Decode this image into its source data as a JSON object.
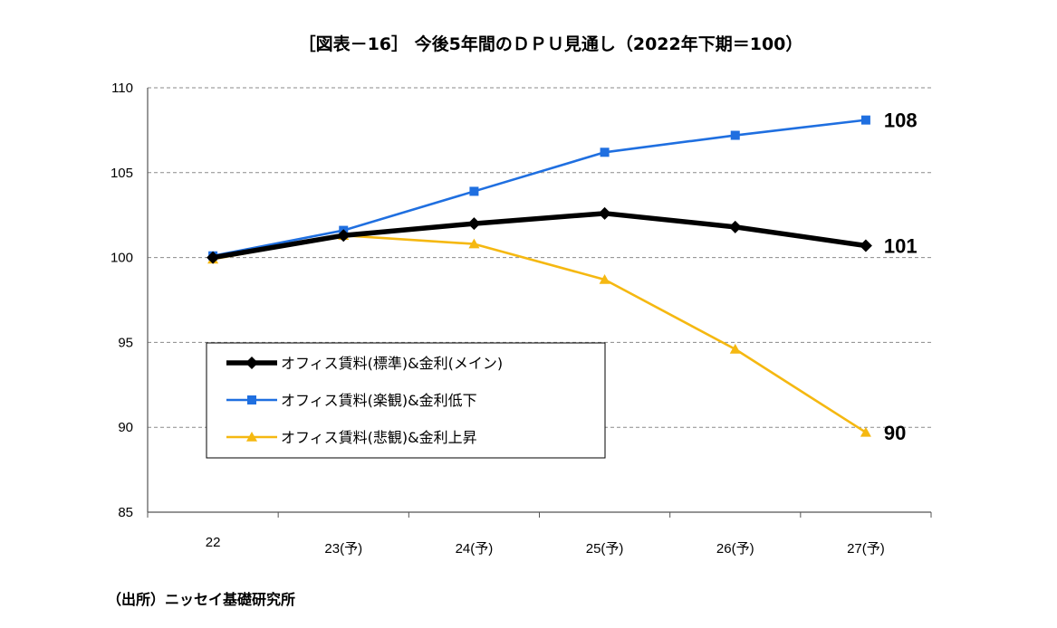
{
  "chart_data": {
    "type": "line",
    "title": "［図表－16］ 今後5年間のＤＰＵ見通し（2022年下期＝100）",
    "categories": [
      "22",
      "23(予)",
      "24(予)",
      "25(予)",
      "26(予)",
      "27(予)"
    ],
    "ylim": [
      85,
      110
    ],
    "yticks": [
      "85",
      "90",
      "95",
      "100",
      "105",
      "110"
    ],
    "grid": true,
    "legend_position": "bottom-left",
    "series": [
      {
        "name": "オフィス賃料(標準)&金利(メイン)",
        "color": "#000000",
        "marker": "diamond",
        "values": [
          100.0,
          101.3,
          102.0,
          102.6,
          101.8,
          100.7
        ],
        "end_label": "101"
      },
      {
        "name": "オフィス賃料(楽観)&金利低下",
        "color": "#1f6fe0",
        "marker": "square",
        "values": [
          100.1,
          101.6,
          103.9,
          106.2,
          107.2,
          108.1
        ],
        "end_label": "108"
      },
      {
        "name": "オフィス賃料(悲観)&金利上昇",
        "color": "#f5b811",
        "marker": "triangle",
        "values": [
          99.9,
          101.3,
          100.8,
          98.7,
          94.6,
          89.7
        ],
        "end_label": "90"
      }
    ]
  },
  "source": "（出所）ニッセイ基礎研究所"
}
